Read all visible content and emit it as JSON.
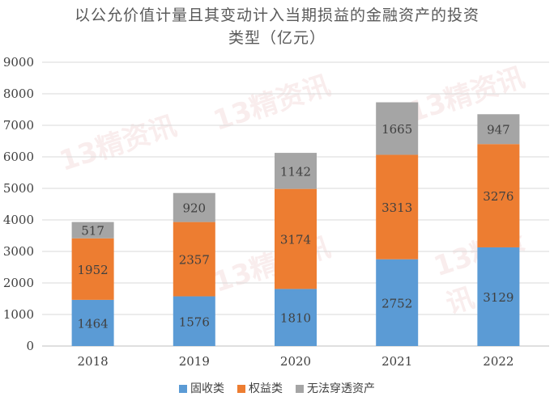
{
  "chart_data": {
    "type": "bar",
    "stacked": true,
    "title_lines": [
      "以公允价值计量且其变动计入当期损益的金融资产的投资",
      "类型（亿元）"
    ],
    "categories": [
      "2018",
      "2019",
      "2020",
      "2021",
      "2022"
    ],
    "series": [
      {
        "name": "固收类",
        "color": "#5b9bd5",
        "values": [
          1464,
          1576,
          1810,
          2752,
          3129
        ]
      },
      {
        "name": "权益类",
        "color": "#ed7d31",
        "values": [
          1952,
          2357,
          3174,
          3313,
          3276
        ]
      },
      {
        "name": "无法穿透资产",
        "color": "#a5a5a5",
        "values": [
          517,
          920,
          1142,
          1665,
          947
        ]
      }
    ],
    "ylim": [
      0,
      9000
    ],
    "yticks": [
      "0",
      "1000",
      "2000",
      "3000",
      "4000",
      "5000",
      "6000",
      "7000",
      "8000",
      "9000"
    ],
    "grid": true,
    "legend_position": "bottom"
  },
  "watermark": "13精资讯"
}
